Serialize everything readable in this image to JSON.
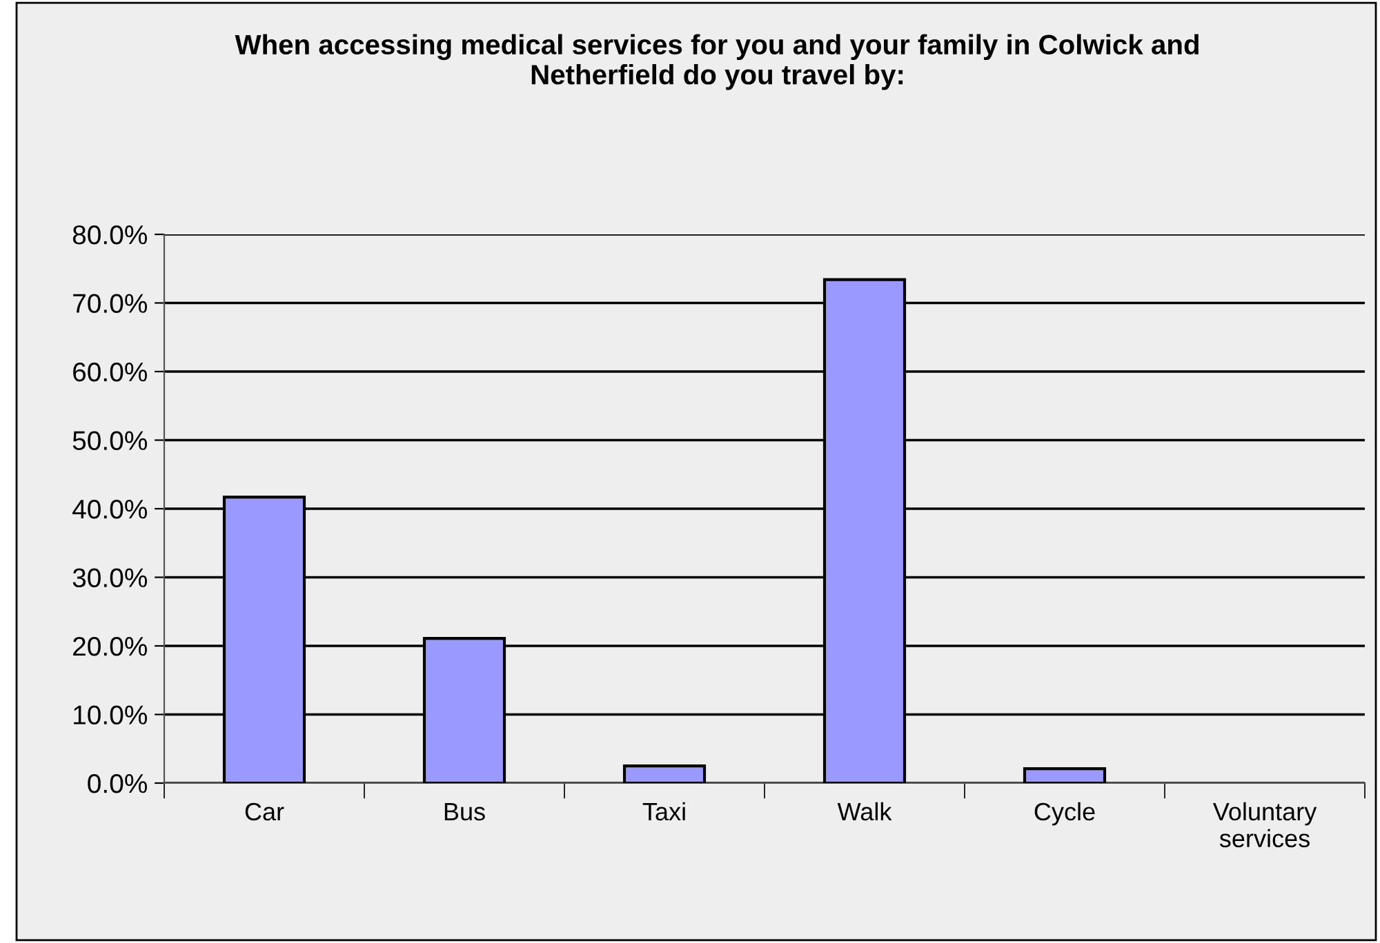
{
  "chart_data": {
    "type": "bar",
    "title": "When accessing medical services for you and your family in Colwick and\nNetherfield do you travel by:",
    "categories": [
      "Car",
      "Bus",
      "Taxi",
      "Walk",
      "Cycle",
      "Voluntary\nservices"
    ],
    "values": [
      41.7,
      21.1,
      2.5,
      73.4,
      2.1,
      0
    ],
    "color": "#9999ff",
    "ylim": [
      0,
      80
    ],
    "yticks": [
      {
        "value": 0,
        "label": "0.0%"
      },
      {
        "value": 10,
        "label": "10.0%"
      },
      {
        "value": 20,
        "label": "20.0%"
      },
      {
        "value": 30,
        "label": "30.0%"
      },
      {
        "value": 40,
        "label": "40.0%"
      },
      {
        "value": 50,
        "label": "50.0%"
      },
      {
        "value": 60,
        "label": "60.0%"
      },
      {
        "value": 70,
        "label": "70.0%"
      },
      {
        "value": 80,
        "label": "80.0%"
      }
    ],
    "grid": "y"
  }
}
